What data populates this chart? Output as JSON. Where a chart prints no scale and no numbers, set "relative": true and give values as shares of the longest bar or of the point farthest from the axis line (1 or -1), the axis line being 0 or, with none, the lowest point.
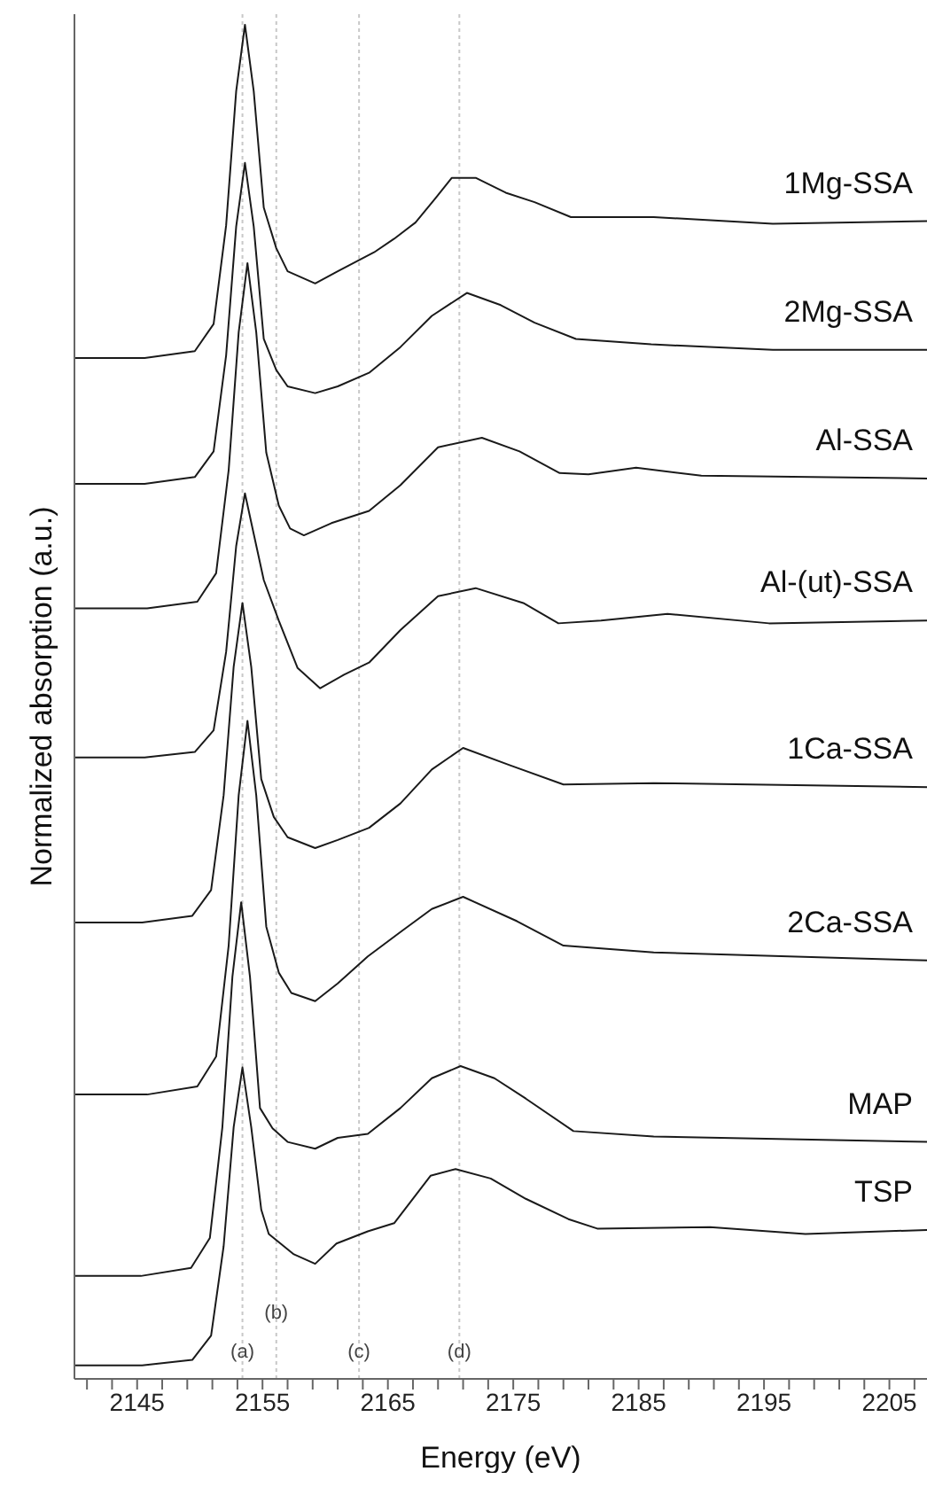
{
  "chart_data": {
    "type": "line",
    "relative": true,
    "xlabel": "Energy (eV)",
    "ylabel": "Normalized absorption (a.u.)",
    "marker": "none",
    "xlim": [
      2140,
      2208
    ],
    "xticks": [
      {
        "value": 2141,
        "label": null
      },
      {
        "value": 2143,
        "label": null
      },
      2145,
      {
        "value": 2147,
        "label": null
      },
      {
        "value": 2149,
        "label": null
      },
      {
        "value": 2151,
        "label": null
      },
      {
        "value": 2153,
        "label": null
      },
      2155,
      {
        "value": 2157,
        "label": null
      },
      {
        "value": 2159,
        "label": null
      },
      {
        "value": 2161,
        "label": null
      },
      {
        "value": 2163,
        "label": null
      },
      2165,
      {
        "value": 2167,
        "label": null
      },
      {
        "value": 2169,
        "label": null
      },
      {
        "value": 2171,
        "label": null
      },
      {
        "value": 2173,
        "label": null
      },
      2175,
      {
        "value": 2177,
        "label": null
      },
      {
        "value": 2179,
        "label": null
      },
      {
        "value": 2181,
        "label": null
      },
      {
        "value": 2183,
        "label": null
      },
      2185,
      {
        "value": 2187,
        "label": null
      },
      {
        "value": 2189,
        "label": null
      },
      {
        "value": 2191,
        "label": null
      },
      {
        "value": 2193,
        "label": null
      },
      2195,
      {
        "value": 2197,
        "label": null
      },
      {
        "value": 2199,
        "label": null
      },
      {
        "value": 2201,
        "label": null
      },
      {
        "value": 2203,
        "label": null
      },
      2205,
      {
        "value": 2207,
        "label": null
      }
    ],
    "ref_lines": [
      {
        "axis": "x",
        "value": 2153.4,
        "label": "(a)",
        "color": "#c8c8c8",
        "line_style": "dotted"
      },
      {
        "axis": "x",
        "value": 2156.1,
        "label": "(b)",
        "color": "#c8c8c8",
        "line_style": "dotted"
      },
      {
        "axis": "x",
        "value": 2162.7,
        "label": "(c)",
        "color": "#c8c8c8",
        "line_style": "dotted"
      },
      {
        "axis": "x",
        "value": 2170.7,
        "label": "(d)",
        "color": "#c8c8c8",
        "line_style": "dotted"
      }
    ],
    "series": [
      {
        "name": "1Mg-SSA",
        "color": "#1a1a1a",
        "x": [
          2140,
          2145.6,
          2149.6,
          2151.1,
          2152.1,
          2152.9,
          2153.6,
          2154.3,
          2155.1,
          2156.1,
          2157,
          2159.2,
          2161,
          2163.9,
          2165.5,
          2167.2,
          2168.8,
          2170.1,
          2172,
          2174.4,
          2176.7,
          2179.6,
          2186.2,
          2195.7,
          2208
        ],
        "values": [
          0.754,
          0.754,
          0.759,
          0.779,
          0.852,
          0.951,
          1.0,
          0.951,
          0.865,
          0.835,
          0.818,
          0.809,
          0.818,
          0.832,
          0.842,
          0.854,
          0.872,
          0.887,
          0.887,
          0.876,
          0.869,
          0.858,
          0.858,
          0.853,
          0.855
        ]
      },
      {
        "name": "2Mg-SSA",
        "color": "#1a1a1a",
        "x": [
          2140,
          2145.6,
          2149.6,
          2151.1,
          2152.1,
          2152.9,
          2153.6,
          2154.3,
          2155.1,
          2156.1,
          2157,
          2159.2,
          2161,
          2163.5,
          2166,
          2168.5,
          2171.3,
          2174,
          2176.7,
          2180,
          2186,
          2195.7,
          2208
        ],
        "values": [
          0.661,
          0.661,
          0.666,
          0.685,
          0.756,
          0.851,
          0.898,
          0.851,
          0.768,
          0.745,
          0.733,
          0.728,
          0.733,
          0.743,
          0.762,
          0.785,
          0.802,
          0.793,
          0.78,
          0.768,
          0.764,
          0.76,
          0.76
        ]
      },
      {
        "name": "Al-SSA",
        "color": "#1a1a1a",
        "x": [
          2140,
          2145.8,
          2149.8,
          2151.3,
          2152.3,
          2153.1,
          2153.8,
          2154.5,
          2155.3,
          2156.3,
          2157.2,
          2158.3,
          2160.5,
          2163.5,
          2166,
          2169,
          2172.5,
          2175.5,
          2178.7,
          2181,
          2184.8,
          2190,
          2208
        ],
        "values": [
          0.569,
          0.569,
          0.574,
          0.595,
          0.671,
          0.773,
          0.824,
          0.773,
          0.684,
          0.645,
          0.628,
          0.623,
          0.632,
          0.641,
          0.66,
          0.688,
          0.695,
          0.685,
          0.669,
          0.668,
          0.673,
          0.667,
          0.665
        ]
      },
      {
        "name": "Al-(ut)-SSA",
        "color": "#1a1a1a",
        "x": [
          2140,
          2145.6,
          2149.6,
          2151.1,
          2152.1,
          2152.9,
          2153.6,
          2154.3,
          2155.1,
          2156.3,
          2157.8,
          2159.6,
          2161.5,
          2163.5,
          2166,
          2169,
          2172,
          2175.8,
          2178.6,
          2182,
          2187.3,
          2195.4,
          2208
        ],
        "values": [
          0.459,
          0.459,
          0.463,
          0.479,
          0.537,
          0.615,
          0.654,
          0.624,
          0.59,
          0.56,
          0.525,
          0.51,
          0.52,
          0.529,
          0.553,
          0.578,
          0.584,
          0.573,
          0.558,
          0.56,
          0.565,
          0.558,
          0.56
        ]
      },
      {
        "name": "1Ca-SSA",
        "color": "#1a1a1a",
        "x": [
          2140,
          2145.4,
          2149.4,
          2150.9,
          2151.9,
          2152.7,
          2153.4,
          2154.1,
          2154.9,
          2155.9,
          2157,
          2159.2,
          2161,
          2163.5,
          2166,
          2168.5,
          2171,
          2174.8,
          2179,
          2186.2,
          2208
        ],
        "values": [
          0.337,
          0.337,
          0.342,
          0.361,
          0.431,
          0.526,
          0.573,
          0.526,
          0.443,
          0.415,
          0.4,
          0.392,
          0.398,
          0.407,
          0.425,
          0.45,
          0.466,
          0.453,
          0.439,
          0.44,
          0.437
        ]
      },
      {
        "name": "2Ca-SSA",
        "color": "#1a1a1a",
        "x": [
          2140,
          2145.8,
          2149.8,
          2151.3,
          2152.3,
          2153.1,
          2153.8,
          2154.5,
          2155.3,
          2156.3,
          2157.3,
          2159.2,
          2161,
          2163.4,
          2166,
          2168.5,
          2171,
          2175.3,
          2179,
          2186.2,
          2208
        ],
        "values": [
          0.21,
          0.21,
          0.216,
          0.238,
          0.32,
          0.431,
          0.486,
          0.431,
          0.334,
          0.3,
          0.285,
          0.279,
          0.292,
          0.312,
          0.33,
          0.347,
          0.356,
          0.338,
          0.32,
          0.315,
          0.309
        ]
      },
      {
        "name": "MAP",
        "color": "#1a1a1a",
        "x": [
          2140,
          2145.3,
          2149.3,
          2150.8,
          2151.8,
          2152.6,
          2153.3,
          2154,
          2154.8,
          2155.8,
          2157,
          2159.2,
          2161,
          2163.4,
          2166,
          2168.5,
          2170.8,
          2173.5,
          2176,
          2179.8,
          2186.2,
          2208
        ],
        "values": [
          0.076,
          0.076,
          0.082,
          0.104,
          0.186,
          0.297,
          0.352,
          0.297,
          0.2,
          0.185,
          0.175,
          0.17,
          0.178,
          0.181,
          0.2,
          0.222,
          0.231,
          0.222,
          0.207,
          0.183,
          0.179,
          0.175
        ]
      },
      {
        "name": "TSP",
        "color": "#1a1a1a",
        "x": [
          2140,
          2145.4,
          2149.4,
          2150.9,
          2151.9,
          2152.7,
          2153.4,
          2154.1,
          2154.9,
          2155.5,
          2157.5,
          2159.2,
          2160.9,
          2163.4,
          2165.5,
          2168.4,
          2170.4,
          2173.2,
          2176,
          2179.4,
          2181.7,
          2190.7,
          2198.3,
          2208
        ],
        "values": [
          0.01,
          0.01,
          0.014,
          0.032,
          0.098,
          0.186,
          0.23,
          0.186,
          0.125,
          0.107,
          0.092,
          0.085,
          0.1,
          0.109,
          0.115,
          0.15,
          0.155,
          0.148,
          0.133,
          0.118,
          0.111,
          0.112,
          0.107,
          0.11
        ]
      }
    ]
  }
}
